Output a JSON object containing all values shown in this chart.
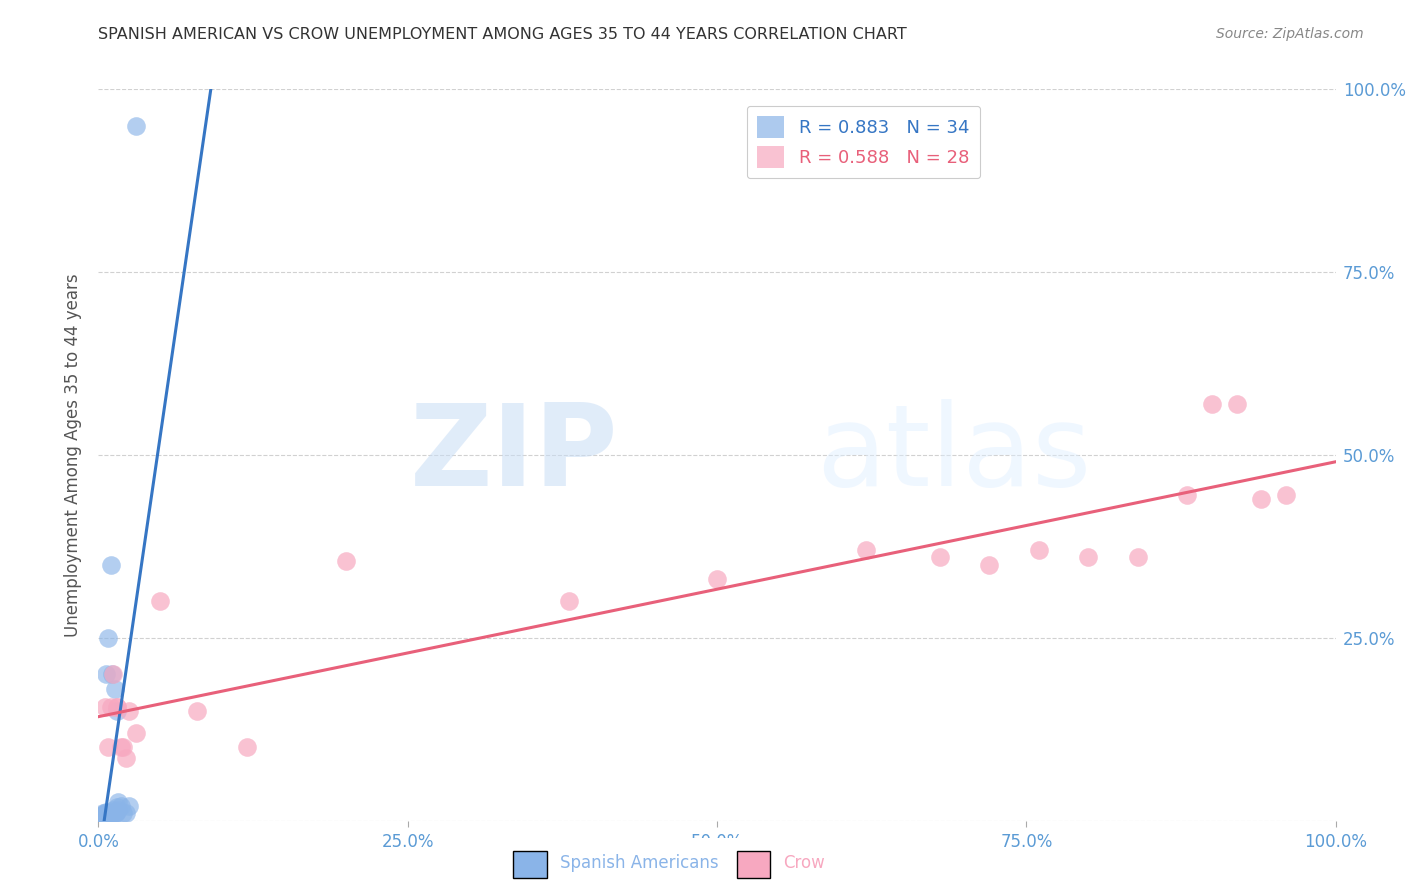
{
  "title": "SPANISH AMERICAN VS CROW UNEMPLOYMENT AMONG AGES 35 TO 44 YEARS CORRELATION CHART",
  "source": "Source: ZipAtlas.com",
  "ylabel": "Unemployment Among Ages 35 to 44 years",
  "watermark_zip": "ZIP",
  "watermark_atlas": "atlas",
  "xlim": [
    0,
    1
  ],
  "ylim": [
    0,
    1
  ],
  "xtick_positions": [
    0,
    0.25,
    0.5,
    0.75,
    1.0
  ],
  "xtick_labels": [
    "0.0%",
    "25.0%",
    "50.0%",
    "75.0%",
    "100.0%"
  ],
  "ytick_positions": [
    0,
    0.25,
    0.5,
    0.75,
    1.0
  ],
  "ytick_labels": [
    "",
    "25.0%",
    "50.0%",
    "75.0%",
    "100.0%"
  ],
  "blue_scatter_color": "#8ab4e8",
  "pink_scatter_color": "#f7a8c0",
  "blue_line_color": "#3676c4",
  "pink_line_color": "#e8607a",
  "legend_r1": "R = 0.883",
  "legend_n1": "N = 34",
  "legend_r2": "R = 0.588",
  "legend_n2": "N = 28",
  "legend_r_color": "#3676c4",
  "legend_n_color": "#e05000",
  "legend_r2_color": "#e8607a",
  "legend_n2_color": "#e05000",
  "title_color": "#333333",
  "source_color": "#888888",
  "ylabel_color": "#555555",
  "axis_tick_color": "#5b9bd5",
  "grid_color": "#cccccc",
  "background": "#ffffff",
  "sa_x": [
    0.001,
    0.002,
    0.003,
    0.004,
    0.005,
    0.006,
    0.007,
    0.008,
    0.009,
    0.01,
    0.011,
    0.012,
    0.013,
    0.014,
    0.015,
    0.016,
    0.003,
    0.005,
    0.007,
    0.009,
    0.011,
    0.013,
    0.01,
    0.015,
    0.008,
    0.012,
    0.006,
    0.02,
    0.018,
    0.014,
    0.022,
    0.016,
    0.03,
    0.025
  ],
  "sa_y": [
    0.005,
    0.005,
    0.008,
    0.01,
    0.01,
    0.012,
    0.008,
    0.008,
    0.005,
    0.01,
    0.012,
    0.01,
    0.01,
    0.012,
    0.018,
    0.015,
    0.005,
    0.005,
    0.01,
    0.01,
    0.2,
    0.18,
    0.35,
    0.15,
    0.25,
    0.015,
    0.2,
    0.01,
    0.02,
    0.01,
    0.01,
    0.025,
    0.95,
    0.02
  ],
  "crow_x": [
    0.005,
    0.008,
    0.012,
    0.015,
    0.018,
    0.01,
    0.02,
    0.025,
    0.015,
    0.022,
    0.03,
    0.05,
    0.08,
    0.12,
    0.2,
    0.38,
    0.5,
    0.62,
    0.68,
    0.72,
    0.76,
    0.8,
    0.84,
    0.88,
    0.9,
    0.92,
    0.94,
    0.96
  ],
  "crow_y": [
    0.155,
    0.1,
    0.2,
    0.155,
    0.1,
    0.155,
    0.1,
    0.15,
    0.155,
    0.085,
    0.12,
    0.3,
    0.15,
    0.1,
    0.355,
    0.3,
    0.33,
    0.37,
    0.36,
    0.35,
    0.37,
    0.36,
    0.36,
    0.445,
    0.57,
    0.57,
    0.44,
    0.445
  ]
}
